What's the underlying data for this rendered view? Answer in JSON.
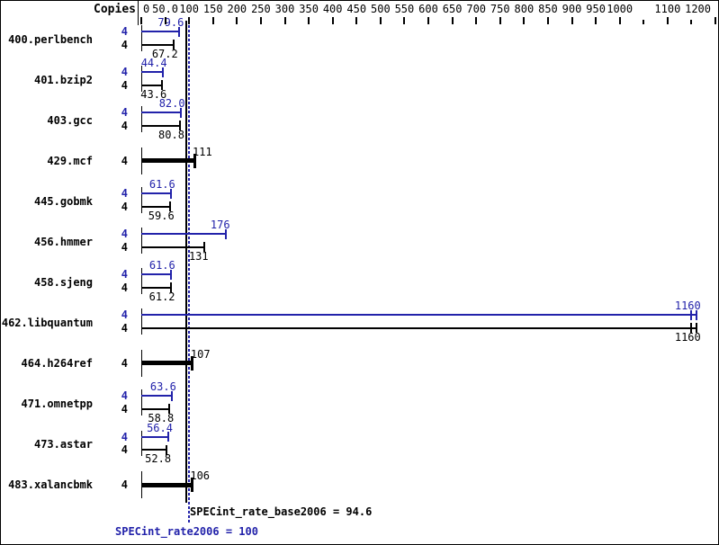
{
  "header": {
    "copies_label": "Copies"
  },
  "footer": {
    "base_result": "SPECint_rate_base2006 = 94.6",
    "peak_result": "SPECint_rate2006 = 100"
  },
  "colors": {
    "peak": "#2222aa",
    "base": "#000000",
    "background": "#ffffff"
  },
  "chart_data": {
    "type": "bar",
    "orientation": "horizontal",
    "title": "",
    "xlabel": "",
    "ylabel": "Copies",
    "xlim": [
      0,
      1200
    ],
    "grid": false,
    "axis_ticks": [
      {
        "value": 0,
        "label": "0"
      },
      {
        "value": 50,
        "label": "50.0"
      },
      {
        "value": 100,
        "label": "100"
      },
      {
        "value": 150,
        "label": "150"
      },
      {
        "value": 200,
        "label": "200"
      },
      {
        "value": 250,
        "label": "250"
      },
      {
        "value": 300,
        "label": "300"
      },
      {
        "value": 350,
        "label": "350"
      },
      {
        "value": 400,
        "label": "400"
      },
      {
        "value": 450,
        "label": "450"
      },
      {
        "value": 500,
        "label": "500"
      },
      {
        "value": 550,
        "label": "550"
      },
      {
        "value": 600,
        "label": "600"
      },
      {
        "value": 650,
        "label": "650"
      },
      {
        "value": 700,
        "label": "700"
      },
      {
        "value": 750,
        "label": "750"
      },
      {
        "value": 800,
        "label": "800"
      },
      {
        "value": 850,
        "label": "850"
      },
      {
        "value": 900,
        "label": "900"
      },
      {
        "value": 950,
        "label": "950"
      },
      {
        "value": 1000,
        "label": "1000"
      },
      {
        "value": 1050,
        "label": ""
      },
      {
        "value": 1100,
        "label": "1100"
      },
      {
        "value": 1150,
        "label": ""
      },
      {
        "value": 1200,
        "label": "1200"
      }
    ],
    "benchmarks": [
      {
        "name": "400.perlbench",
        "copies": 4,
        "bars": "pair",
        "peak": 79.6,
        "peak_label": "79.6",
        "base": 67.2,
        "base_label": "67.2"
      },
      {
        "name": "401.bzip2",
        "copies": 4,
        "bars": "pair",
        "peak": 44.4,
        "peak_label": "44.4",
        "base": 43.6,
        "base_label": "43.6"
      },
      {
        "name": "403.gcc",
        "copies": 4,
        "bars": "pair",
        "peak": 82.0,
        "peak_label": "82.0",
        "base": 80.8,
        "base_label": "80.8"
      },
      {
        "name": "429.mcf",
        "copies": 4,
        "bars": "single",
        "base": 111,
        "base_label": "111"
      },
      {
        "name": "445.gobmk",
        "copies": 4,
        "bars": "pair",
        "peak": 61.6,
        "peak_label": "61.6",
        "base": 59.6,
        "base_label": "59.6"
      },
      {
        "name": "456.hmmer",
        "copies": 4,
        "bars": "pair",
        "peak": 176,
        "peak_label": "176",
        "base": 131,
        "base_label": "131"
      },
      {
        "name": "458.sjeng",
        "copies": 4,
        "bars": "pair",
        "peak": 61.6,
        "peak_label": "61.6",
        "base": 61.2,
        "base_label": "61.2"
      },
      {
        "name": "462.libquantum",
        "copies": 4,
        "bars": "pair",
        "peak": 1160,
        "peak_label": "1160",
        "base": 1160,
        "base_label": "1160",
        "end_marker": "double"
      },
      {
        "name": "464.h264ref",
        "copies": 4,
        "bars": "single",
        "base": 107,
        "base_label": "107"
      },
      {
        "name": "471.omnetpp",
        "copies": 4,
        "bars": "pair",
        "peak": 63.6,
        "peak_label": "63.6",
        "base": 58.8,
        "base_label": "58.8"
      },
      {
        "name": "473.astar",
        "copies": 4,
        "bars": "pair",
        "peak": 56.4,
        "peak_label": "56.4",
        "base": 52.8,
        "base_label": "52.8"
      },
      {
        "name": "483.xalancbmk",
        "copies": 4,
        "bars": "single",
        "base": 106,
        "base_label": "106"
      }
    ],
    "reference_lines": [
      {
        "name": "SPECint_rate_base2006",
        "value": 94.6,
        "style": "solid",
        "color": "#000000"
      },
      {
        "name": "SPECint_rate2006",
        "value": 100,
        "style": "dotted",
        "color": "#2222aa"
      }
    ]
  }
}
